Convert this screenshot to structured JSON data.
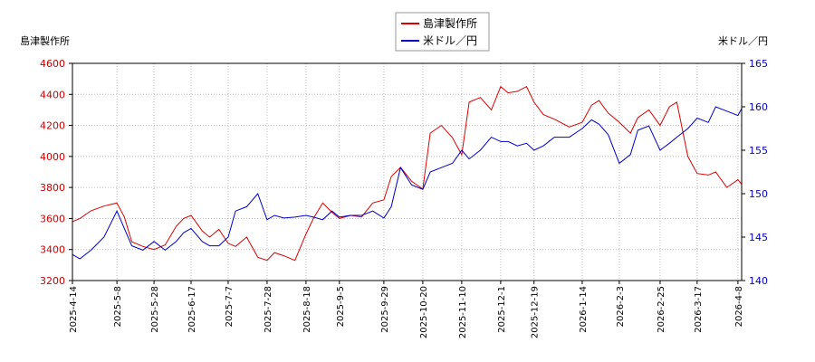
{
  "chart_data": {
    "type": "line",
    "left_axis_title": "島津製作所",
    "right_axis_title": "米ドル／円",
    "legend": [
      "島津製作所",
      "米ドル／円"
    ],
    "legend_position": "top-center",
    "grid": true,
    "colors": {
      "shimadzu": "#dd0000",
      "usdjpy": "#0000cc",
      "grid": "#bbbbbb"
    },
    "y_left": {
      "min": 3200,
      "max": 4600,
      "ticks": [
        3200,
        3400,
        3600,
        3800,
        4000,
        4200,
        4400,
        4600
      ]
    },
    "y_right": {
      "min": 140,
      "max": 165,
      "ticks": [
        140,
        145,
        150,
        155,
        160,
        165
      ]
    },
    "x_ticks": [
      "2025-4-14",
      "2025-5-8",
      "2025-5-28",
      "2025-6-17",
      "2025-7-7",
      "2025-7-28",
      "2025-8-18",
      "2025-9-5",
      "2025-9-29",
      "2025-10-20",
      "2025-11-10",
      "2025-12-1",
      "2025-12-19",
      "2026-1-14",
      "2026-2-3",
      "2026-2-25",
      "2026-3-17",
      "2026-4-8"
    ],
    "series": [
      {
        "name": "島津製作所",
        "axis": "left",
        "x": [
          "2025-4-14",
          "2025-4-18",
          "2025-4-24",
          "2025-5-1",
          "2025-5-8",
          "2025-5-12",
          "2025-5-16",
          "2025-5-22",
          "2025-5-28",
          "2025-6-3",
          "2025-6-9",
          "2025-6-13",
          "2025-6-17",
          "2025-6-23",
          "2025-6-27",
          "2025-7-2",
          "2025-7-7",
          "2025-7-11",
          "2025-7-17",
          "2025-7-23",
          "2025-7-28",
          "2025-8-1",
          "2025-8-6",
          "2025-8-12",
          "2025-8-18",
          "2025-8-22",
          "2025-8-27",
          "2025-9-1",
          "2025-9-5",
          "2025-9-11",
          "2025-9-17",
          "2025-9-23",
          "2025-9-29",
          "2025-10-3",
          "2025-10-8",
          "2025-10-14",
          "2025-10-20",
          "2025-10-24",
          "2025-10-30",
          "2025-11-5",
          "2025-11-10",
          "2025-11-14",
          "2025-11-20",
          "2025-11-26",
          "2025-12-1",
          "2025-12-5",
          "2025-12-10",
          "2025-12-15",
          "2025-12-19",
          "2025-12-24",
          "2025-12-30",
          "2026-1-7",
          "2026-1-14",
          "2026-1-19",
          "2026-1-23",
          "2026-1-28",
          "2026-2-3",
          "2026-2-9",
          "2026-2-13",
          "2026-2-19",
          "2026-2-25",
          "2026-3-2",
          "2026-3-6",
          "2026-3-12",
          "2026-3-17",
          "2026-3-23",
          "2026-3-27",
          "2026-4-2",
          "2026-4-8",
          "2026-4-10"
        ],
        "values": [
          3580,
          3600,
          3650,
          3680,
          3700,
          3610,
          3450,
          3420,
          3400,
          3430,
          3550,
          3600,
          3620,
          3520,
          3480,
          3530,
          3440,
          3420,
          3480,
          3350,
          3330,
          3380,
          3360,
          3330,
          3500,
          3600,
          3700,
          3640,
          3600,
          3620,
          3610,
          3700,
          3720,
          3870,
          3930,
          3840,
          3790,
          4150,
          4200,
          4120,
          4010,
          4350,
          4380,
          4300,
          4450,
          4410,
          4420,
          4450,
          4350,
          4270,
          4240,
          4190,
          4220,
          4330,
          4360,
          4280,
          4220,
          4150,
          4250,
          4300,
          4200,
          4320,
          4350,
          4000,
          3890,
          3880,
          3900,
          3800,
          3850,
          3820
        ]
      },
      {
        "name": "米ドル／円",
        "axis": "right",
        "x": [
          "2025-4-14",
          "2025-4-18",
          "2025-4-24",
          "2025-5-1",
          "2025-5-8",
          "2025-5-12",
          "2025-5-16",
          "2025-5-22",
          "2025-5-28",
          "2025-6-3",
          "2025-6-9",
          "2025-6-13",
          "2025-6-17",
          "2025-6-23",
          "2025-6-27",
          "2025-7-2",
          "2025-7-7",
          "2025-7-11",
          "2025-7-17",
          "2025-7-23",
          "2025-7-28",
          "2025-8-1",
          "2025-8-6",
          "2025-8-12",
          "2025-8-18",
          "2025-8-22",
          "2025-8-27",
          "2025-9-1",
          "2025-9-5",
          "2025-9-11",
          "2025-9-17",
          "2025-9-23",
          "2025-9-29",
          "2025-10-3",
          "2025-10-8",
          "2025-10-14",
          "2025-10-20",
          "2025-10-24",
          "2025-10-30",
          "2025-11-5",
          "2025-11-10",
          "2025-11-14",
          "2025-11-20",
          "2025-11-26",
          "2025-12-1",
          "2025-12-5",
          "2025-12-10",
          "2025-12-15",
          "2025-12-19",
          "2025-12-24",
          "2025-12-30",
          "2026-1-7",
          "2026-1-14",
          "2026-1-19",
          "2026-1-23",
          "2026-1-28",
          "2026-2-3",
          "2026-2-9",
          "2026-2-13",
          "2026-2-19",
          "2026-2-25",
          "2026-3-2",
          "2026-3-6",
          "2026-3-12",
          "2026-3-17",
          "2026-3-23",
          "2026-3-27",
          "2026-4-2",
          "2026-4-8",
          "2026-4-10"
        ],
        "values": [
          143,
          142.5,
          143.5,
          145,
          148,
          146,
          144,
          143.5,
          144.5,
          143.5,
          144.5,
          145.5,
          146,
          144.5,
          144,
          144,
          145,
          148,
          148.5,
          150,
          147,
          147.5,
          147.2,
          147.3,
          147.5,
          147.3,
          147,
          148,
          147.3,
          147.5,
          147.5,
          148,
          147.2,
          148.5,
          153,
          151,
          150.5,
          152.5,
          153,
          153.5,
          155,
          154,
          155,
          156.5,
          156,
          156,
          155.5,
          155.8,
          155,
          155.5,
          156.5,
          156.5,
          157.5,
          158.5,
          158,
          156.8,
          153.5,
          154.5,
          157.3,
          157.8,
          155,
          155.8,
          156.5,
          157.5,
          158.7,
          158.2,
          160,
          159.5,
          159,
          159.8
        ]
      }
    ]
  }
}
